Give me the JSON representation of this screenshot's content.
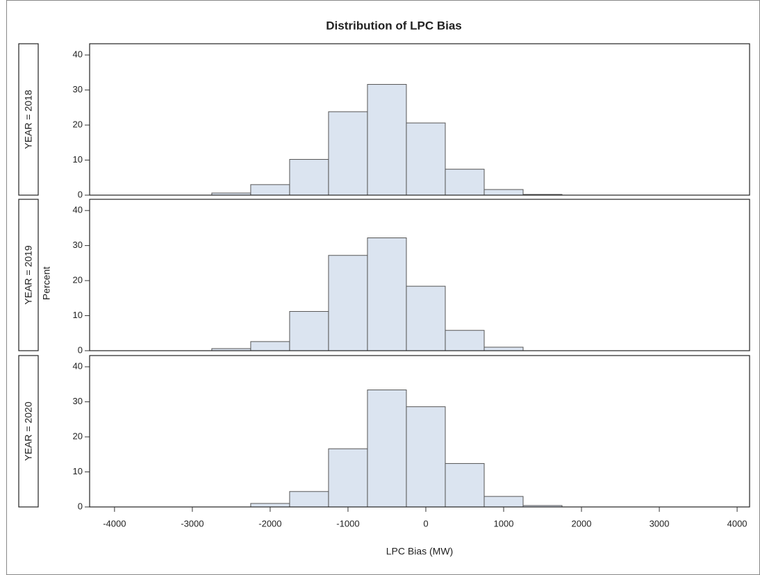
{
  "chart_data": {
    "type": "histogram",
    "title": "Distribution of LPC Bias",
    "x_label": "LPC Bias (MW)",
    "y_label": "Percent",
    "color": "#dbe4f0",
    "grid": false,
    "xlim": [
      -4320,
      4160
    ],
    "xticks": [
      -4000,
      -3000,
      -2000,
      -1000,
      0,
      1000,
      2000,
      3000,
      4000
    ],
    "ylim": [
      0,
      43.2
    ],
    "yticks": [
      0,
      10,
      20,
      30,
      40
    ],
    "panels": [
      {
        "label": "YEAR = 2018",
        "bins": [
          -2750,
          -2250,
          -1750,
          -1250,
          -750,
          -250,
          250,
          750,
          1250,
          1750
        ],
        "values": [
          0.6,
          3.0,
          10.2,
          23.8,
          31.6,
          20.6,
          7.4,
          1.6,
          0.2
        ]
      },
      {
        "label": "YEAR = 2019",
        "bins": [
          -2750,
          -2250,
          -1750,
          -1250,
          -750,
          -250,
          250,
          750,
          1250
        ],
        "values": [
          0.6,
          2.6,
          11.2,
          27.2,
          32.2,
          18.4,
          5.8,
          1.0
        ]
      },
      {
        "label": "YEAR = 2020",
        "bins": [
          -2250,
          -1750,
          -1250,
          -750,
          -250,
          250,
          750,
          1250,
          1750
        ],
        "values": [
          1.0,
          4.4,
          16.6,
          33.4,
          28.6,
          12.4,
          3.0,
          0.4
        ]
      }
    ]
  }
}
